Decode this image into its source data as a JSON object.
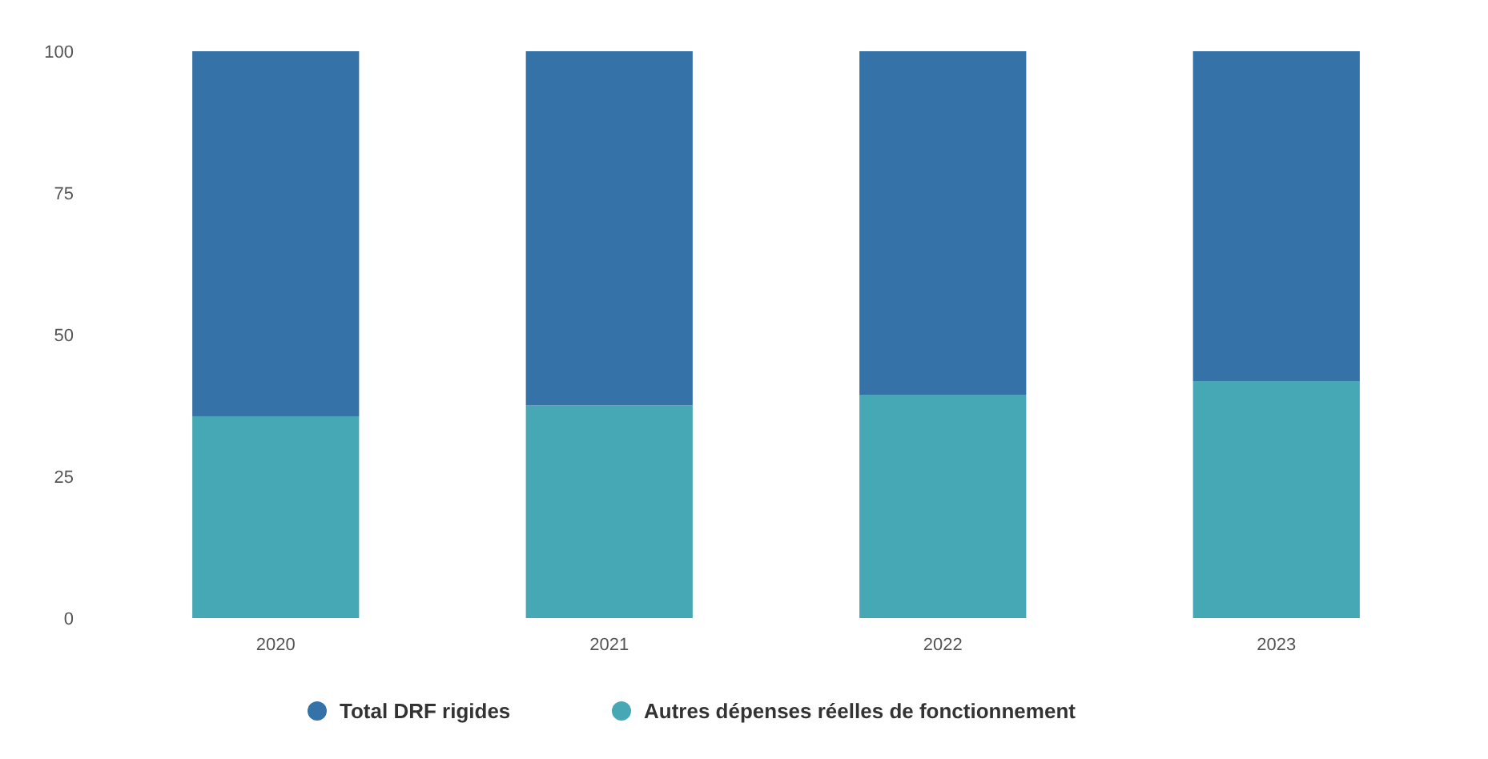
{
  "chart_data": {
    "type": "bar",
    "stacked": true,
    "categories": [
      "2020",
      "2021",
      "2022",
      "2023"
    ],
    "series": [
      {
        "name": "Autres dépenses réelles de fonctionnement",
        "color": "#45a8b4",
        "values": [
          35.6,
          37.5,
          39.4,
          41.8
        ]
      },
      {
        "name": "Total DRF rigides",
        "color": "#3572a8",
        "values": [
          64.4,
          62.5,
          60.6,
          58.2
        ]
      }
    ],
    "ylim": [
      0,
      100
    ],
    "yticks": [
      0,
      25,
      50,
      75,
      100
    ],
    "grid": false,
    "legend": "bottom"
  }
}
